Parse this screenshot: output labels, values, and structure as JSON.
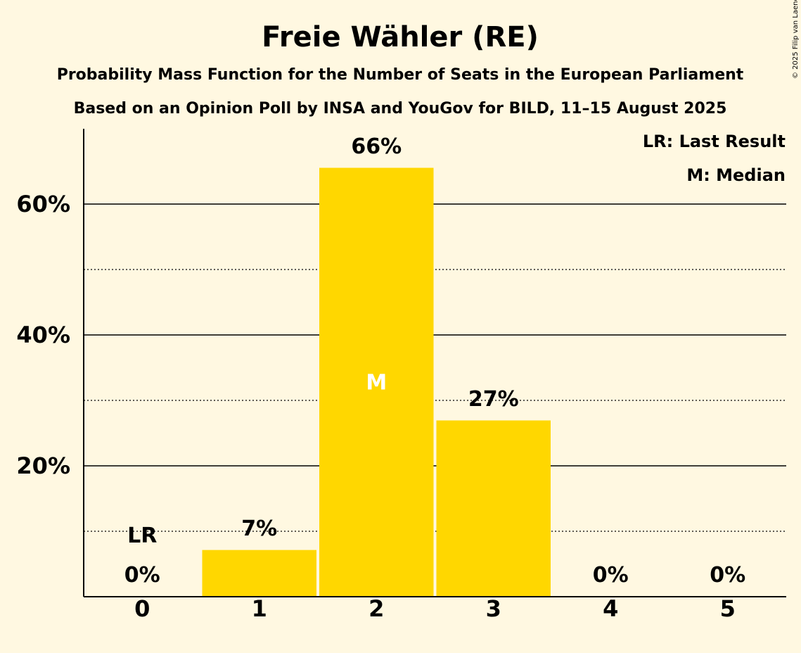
{
  "chart_data": {
    "type": "bar",
    "title": "Freie Wähler (RE)",
    "subtitle": "Probability Mass Function for the Number of Seats in the European Parliament",
    "subtitle2": "Based on an Opinion Poll by INSA and YouGov for BILD, 11–15 August 2025",
    "categories": [
      "0",
      "1",
      "2",
      "3",
      "4",
      "5"
    ],
    "values": [
      0,
      7.3,
      65.7,
      27.1,
      0,
      0
    ],
    "value_labels": [
      "0%",
      "7%",
      "66%",
      "27%",
      "0%",
      "0%"
    ],
    "ylim": [
      0,
      72
    ],
    "yticks_major": [
      20,
      40,
      60
    ],
    "ytick_labels": [
      "20%",
      "40%",
      "60%"
    ],
    "yticks_minor": [
      10,
      30,
      50
    ],
    "grid": true,
    "last_result_index": 0,
    "last_result_marker": "LR",
    "median_index": 2,
    "median_marker": "M",
    "legend": {
      "placement": "top-right",
      "items": [
        "LR: Last Result",
        "M: Median"
      ]
    },
    "bar_color": "#FFD700",
    "background_color": "#FFF8E1",
    "copyright": "© 2025 Filip van Laenen"
  }
}
